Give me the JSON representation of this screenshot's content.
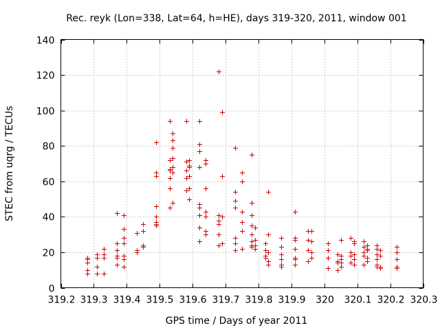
{
  "chart_data": {
    "type": "scatter",
    "title": "Rec. reyk (Lon=338, Lat=64, h=HE), days 319-320, 2011, window 001",
    "xlabel": "GPS time / Days of year 2011",
    "ylabel": "STEC from uqrg / TECUs",
    "xlim": [
      319.2,
      320.3
    ],
    "ylim": [
      0,
      140
    ],
    "xticks": [
      319.2,
      319.3,
      319.4,
      319.5,
      319.6,
      319.7,
      319.8,
      319.9,
      320,
      320.1,
      320.2,
      320.3
    ],
    "xtick_labels": [
      "319.2",
      "319.3",
      "319.4",
      "319.5",
      "319.6",
      "319.7",
      "319.8",
      "319.9",
      "320",
      "320.1",
      "320.2",
      "320.3"
    ],
    "yticks": [
      0,
      20,
      40,
      60,
      80,
      100,
      120,
      140
    ],
    "ytick_labels": [
      "0",
      "20",
      "40",
      "60",
      "80",
      "100",
      "120",
      "140"
    ],
    "grid": true,
    "marker": "+",
    "marker_color": "#cc0000",
    "points": [
      [
        319.28,
        17
      ],
      [
        319.28,
        16
      ],
      [
        319.28,
        14
      ],
      [
        319.28,
        10
      ],
      [
        319.28,
        8
      ],
      [
        319.31,
        19
      ],
      [
        319.31,
        17
      ],
      [
        319.31,
        12
      ],
      [
        319.31,
        8
      ],
      [
        319.33,
        22
      ],
      [
        319.33,
        19
      ],
      [
        319.33,
        17
      ],
      [
        319.33,
        8
      ],
      [
        319.37,
        42
      ],
      [
        319.37,
        25
      ],
      [
        319.37,
        21
      ],
      [
        319.37,
        18
      ],
      [
        319.37,
        17
      ],
      [
        319.37,
        13
      ],
      [
        319.39,
        41
      ],
      [
        319.39,
        33
      ],
      [
        319.39,
        28
      ],
      [
        319.39,
        25
      ],
      [
        319.39,
        18
      ],
      [
        319.39,
        16
      ],
      [
        319.39,
        12
      ],
      [
        319.43,
        31
      ],
      [
        319.43,
        21
      ],
      [
        319.43,
        20
      ],
      [
        319.45,
        36
      ],
      [
        319.45,
        32
      ],
      [
        319.45,
        24
      ],
      [
        319.45,
        23
      ],
      [
        319.49,
        82
      ],
      [
        319.49,
        65
      ],
      [
        319.49,
        63
      ],
      [
        319.49,
        46
      ],
      [
        319.49,
        40
      ],
      [
        319.49,
        37
      ],
      [
        319.49,
        36
      ],
      [
        319.49,
        35
      ],
      [
        319.53,
        94
      ],
      [
        319.53,
        72
      ],
      [
        319.53,
        67
      ],
      [
        319.53,
        66
      ],
      [
        319.53,
        62
      ],
      [
        319.53,
        56
      ],
      [
        319.53,
        45
      ],
      [
        319.54,
        87
      ],
      [
        319.54,
        83
      ],
      [
        319.54,
        79
      ],
      [
        319.54,
        73
      ],
      [
        319.54,
        68
      ],
      [
        319.54,
        65
      ],
      [
        319.54,
        48
      ],
      [
        319.58,
        94
      ],
      [
        319.58,
        71
      ],
      [
        319.58,
        66
      ],
      [
        319.58,
        62
      ],
      [
        319.58,
        55
      ],
      [
        319.59,
        72
      ],
      [
        319.59,
        69
      ],
      [
        319.59,
        68
      ],
      [
        319.59,
        63
      ],
      [
        319.59,
        56
      ],
      [
        319.59,
        50
      ],
      [
        319.62,
        94
      ],
      [
        319.62,
        81
      ],
      [
        319.62,
        77
      ],
      [
        319.62,
        68
      ],
      [
        319.62,
        47
      ],
      [
        319.62,
        45
      ],
      [
        319.62,
        41
      ],
      [
        319.62,
        34
      ],
      [
        319.62,
        26
      ],
      [
        319.64,
        72
      ],
      [
        319.64,
        70
      ],
      [
        319.64,
        56
      ],
      [
        319.64,
        43
      ],
      [
        319.64,
        40
      ],
      [
        319.64,
        32
      ],
      [
        319.64,
        30
      ],
      [
        319.68,
        122
      ],
      [
        319.68,
        41
      ],
      [
        319.68,
        38
      ],
      [
        319.68,
        36
      ],
      [
        319.68,
        30
      ],
      [
        319.68,
        24
      ],
      [
        319.69,
        99
      ],
      [
        319.69,
        63
      ],
      [
        319.69,
        40
      ],
      [
        319.69,
        25
      ],
      [
        319.73,
        79
      ],
      [
        319.73,
        54
      ],
      [
        319.73,
        49
      ],
      [
        319.73,
        45
      ],
      [
        319.73,
        28
      ],
      [
        319.73,
        25
      ],
      [
        319.73,
        21
      ],
      [
        319.75,
        65
      ],
      [
        319.75,
        60
      ],
      [
        319.75,
        43
      ],
      [
        319.75,
        37
      ],
      [
        319.75,
        32
      ],
      [
        319.75,
        22
      ],
      [
        319.78,
        75
      ],
      [
        319.78,
        48
      ],
      [
        319.78,
        41
      ],
      [
        319.78,
        35
      ],
      [
        319.78,
        30
      ],
      [
        319.78,
        26
      ],
      [
        319.78,
        24
      ],
      [
        319.78,
        23
      ],
      [
        319.79,
        34
      ],
      [
        319.79,
        27
      ],
      [
        319.79,
        24
      ],
      [
        319.79,
        22
      ],
      [
        319.82,
        25
      ],
      [
        319.82,
        21
      ],
      [
        319.82,
        18
      ],
      [
        319.82,
        17
      ],
      [
        319.83,
        54
      ],
      [
        319.83,
        30
      ],
      [
        319.83,
        20
      ],
      [
        319.83,
        15
      ],
      [
        319.83,
        13
      ],
      [
        319.87,
        28
      ],
      [
        319.87,
        23
      ],
      [
        319.87,
        19
      ],
      [
        319.87,
        16
      ],
      [
        319.87,
        13
      ],
      [
        319.87,
        12
      ],
      [
        319.91,
        43
      ],
      [
        319.91,
        28
      ],
      [
        319.91,
        27
      ],
      [
        319.91,
        22
      ],
      [
        319.91,
        17
      ],
      [
        319.91,
        16
      ],
      [
        319.91,
        13
      ],
      [
        319.95,
        32
      ],
      [
        319.95,
        27
      ],
      [
        319.95,
        21
      ],
      [
        319.95,
        15
      ],
      [
        319.96,
        32
      ],
      [
        319.96,
        26
      ],
      [
        319.96,
        20
      ],
      [
        319.96,
        17
      ],
      [
        320.01,
        25
      ],
      [
        320.01,
        21
      ],
      [
        320.01,
        17
      ],
      [
        320.01,
        11
      ],
      [
        320.04,
        19
      ],
      [
        320.04,
        15
      ],
      [
        320.04,
        14
      ],
      [
        320.04,
        10
      ],
      [
        320.05,
        27
      ],
      [
        320.05,
        18
      ],
      [
        320.05,
        16
      ],
      [
        320.05,
        14
      ],
      [
        320.05,
        12
      ],
      [
        320.08,
        28
      ],
      [
        320.08,
        20
      ],
      [
        320.08,
        18
      ],
      [
        320.08,
        14
      ],
      [
        320.09,
        26
      ],
      [
        320.09,
        25
      ],
      [
        320.09,
        19
      ],
      [
        320.09,
        16
      ],
      [
        320.09,
        13
      ],
      [
        320.12,
        26
      ],
      [
        320.12,
        23
      ],
      [
        320.12,
        20
      ],
      [
        320.12,
        18
      ],
      [
        320.12,
        13
      ],
      [
        320.13,
        24
      ],
      [
        320.13,
        22
      ],
      [
        320.13,
        21
      ],
      [
        320.13,
        17
      ],
      [
        320.13,
        15
      ],
      [
        320.16,
        24
      ],
      [
        320.16,
        22
      ],
      [
        320.16,
        19
      ],
      [
        320.16,
        16
      ],
      [
        320.16,
        13
      ],
      [
        320.16,
        12
      ],
      [
        320.17,
        21
      ],
      [
        320.17,
        18
      ],
      [
        320.17,
        12
      ],
      [
        320.17,
        11
      ],
      [
        320.22,
        23
      ],
      [
        320.22,
        20
      ],
      [
        320.22,
        16
      ],
      [
        320.22,
        12
      ],
      [
        320.22,
        11
      ]
    ]
  }
}
